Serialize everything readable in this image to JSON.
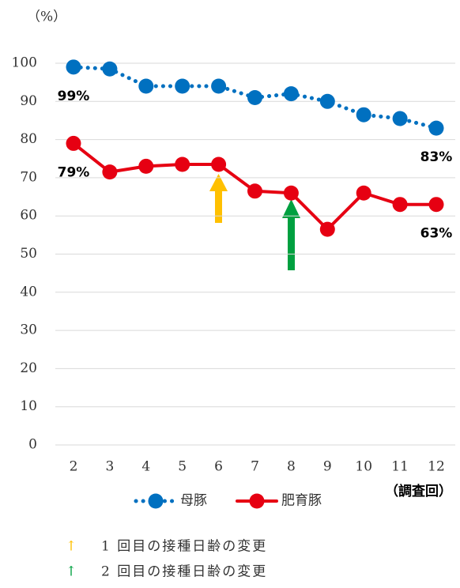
{
  "chart_data": {
    "type": "line",
    "y_unit": "（%）",
    "x_label": "（調査回）",
    "categories": [
      "2",
      "3",
      "4",
      "5",
      "6",
      "7",
      "8",
      "9",
      "10",
      "11",
      "12"
    ],
    "series": [
      {
        "name": "母豚",
        "color": "#0070c0",
        "style": "dotted",
        "values": [
          99,
          98.5,
          94,
          94,
          94,
          91,
          92,
          90,
          86.5,
          85.5,
          83
        ],
        "value_labels": [
          "99%",
          null,
          null,
          null,
          null,
          null,
          null,
          null,
          null,
          null,
          "83%"
        ]
      },
      {
        "name": "肥育豚",
        "color": "#e60012",
        "style": "solid",
        "values": [
          79,
          71.5,
          73,
          73.5,
          73.5,
          66.5,
          66,
          56.5,
          66,
          63,
          63
        ],
        "value_labels": [
          "79%",
          null,
          null,
          null,
          null,
          null,
          null,
          null,
          null,
          null,
          "63%"
        ]
      }
    ],
    "ylim": [
      0,
      100
    ],
    "yticks": [
      0,
      10,
      20,
      30,
      40,
      50,
      60,
      70,
      80,
      90,
      100
    ],
    "grid": true,
    "notes": [
      {
        "text": "1 回目の接種日齢の変更",
        "color": "#ffc000"
      },
      {
        "text": "2 回目の接種日齢の変更",
        "color": "#00a040"
      }
    ]
  }
}
